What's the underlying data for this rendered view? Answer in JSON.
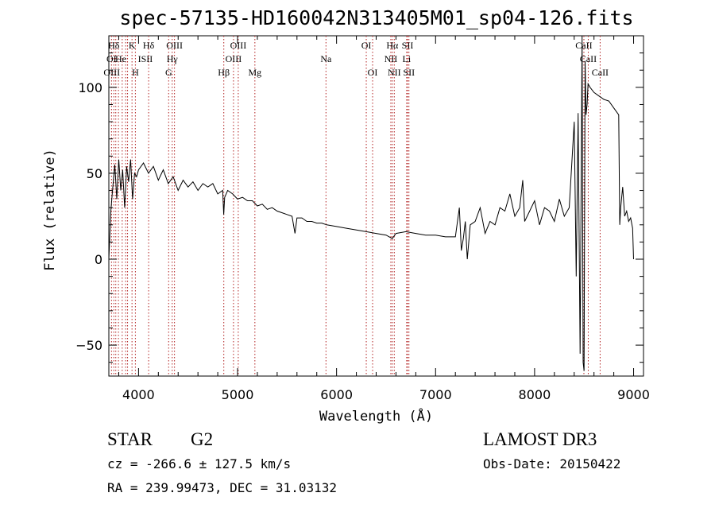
{
  "chart_data": {
    "type": "line",
    "title": "spec-57135-HD160042N313405M01_sp04-126.fits",
    "xlabel": "Wavelength (Å)",
    "ylabel": "Flux (relative)",
    "xlim": [
      3700,
      9100
    ],
    "ylim": [
      -68,
      130
    ],
    "x_ticks": [
      4000,
      5000,
      6000,
      7000,
      8000,
      9000
    ],
    "y_ticks": [
      -50,
      0,
      50,
      100
    ],
    "series": [
      {
        "x": [
          3700,
          3720,
          3740,
          3760,
          3780,
          3800,
          3820,
          3840,
          3860,
          3880,
          3900,
          3920,
          3940,
          3960,
          3980,
          4000,
          4050,
          4100,
          4150,
          4200,
          4250,
          4300,
          4350,
          4400,
          4450,
          4500,
          4550,
          4600,
          4650,
          4700,
          4750,
          4800,
          4850,
          4860,
          4870,
          4900,
          4950,
          5000,
          5050,
          5100,
          5150,
          5200,
          5250,
          5300,
          5350,
          5400,
          5450,
          5500,
          5550,
          5580,
          5600,
          5650,
          5700,
          5750,
          5800,
          5850,
          5900,
          6000,
          6100,
          6200,
          6300,
          6400,
          6500,
          6563,
          6600,
          6700,
          6800,
          6900,
          7000,
          7100,
          7200,
          7240,
          7260,
          7280,
          7300,
          7320,
          7350,
          7400,
          7450,
          7500,
          7550,
          7600,
          7650,
          7700,
          7750,
          7800,
          7850,
          7880,
          7900,
          7950,
          8000,
          8050,
          8100,
          8150,
          8200,
          8250,
          8300,
          8350,
          8400,
          8420,
          8440,
          8460,
          8480,
          8490,
          8500,
          8510,
          8520,
          8530,
          8540,
          8560,
          8600,
          8650,
          8700,
          8750,
          8800,
          8850,
          8860,
          8870,
          8890,
          8910,
          8930,
          8950,
          8970,
          8990,
          9000
        ],
        "y": [
          0,
          28,
          42,
          55,
          35,
          58,
          40,
          52,
          30,
          54,
          45,
          58,
          35,
          50,
          48,
          52,
          56,
          50,
          54,
          46,
          52,
          44,
          48,
          40,
          46,
          42,
          45,
          40,
          44,
          42,
          44,
          38,
          40,
          26,
          36,
          40,
          38,
          35,
          36,
          34,
          34,
          31,
          32,
          29,
          30,
          28,
          27,
          26,
          25,
          15,
          24,
          24,
          22,
          22,
          21,
          21,
          20,
          19,
          18,
          17,
          16,
          15,
          14,
          12,
          15,
          16,
          15,
          14,
          14,
          13,
          13,
          30,
          5,
          12,
          22,
          0,
          20,
          22,
          30,
          15,
          22,
          20,
          30,
          28,
          38,
          25,
          30,
          46,
          22,
          28,
          34,
          20,
          30,
          28,
          22,
          35,
          25,
          30,
          80,
          -10,
          85,
          -55,
          130,
          -60,
          -65,
          115,
          84,
          90,
          102,
          100,
          97,
          95,
          93,
          92,
          88,
          84,
          20,
          30,
          42,
          25,
          28,
          22,
          24,
          18,
          0
        ]
      }
    ],
    "spectral_lines": [
      {
        "label": "Hδ",
        "x": 3750,
        "row": 0
      },
      {
        "label": "K",
        "x": 3934,
        "row": 0
      },
      {
        "label": "Hδ",
        "x": 4102,
        "row": 0
      },
      {
        "label": "OIII",
        "x": 4363,
        "row": 0
      },
      {
        "label": "OIII",
        "x": 5007,
        "row": 0
      },
      {
        "label": "OI",
        "x": 6300,
        "row": 0
      },
      {
        "label": "Hα",
        "x": 6563,
        "row": 0
      },
      {
        "label": "SII",
        "x": 6717,
        "row": 0
      },
      {
        "label": "CaII",
        "x": 8498,
        "row": 0
      },
      {
        "label": "OI",
        "x": 3727,
        "row": 1
      },
      {
        "label": "He",
        "x": 3820,
        "row": 1
      },
      {
        "label": "ISII",
        "x": 4069,
        "row": 1
      },
      {
        "label": "Hγ",
        "x": 4340,
        "row": 1
      },
      {
        "label": "OIII",
        "x": 4959,
        "row": 1
      },
      {
        "label": "Na",
        "x": 5893,
        "row": 1
      },
      {
        "label": "NII",
        "x": 6548,
        "row": 1
      },
      {
        "label": "Li",
        "x": 6708,
        "row": 1
      },
      {
        "label": "CaII",
        "x": 8542,
        "row": 1
      },
      {
        "label": "OIII",
        "x": 3730,
        "row": 2
      },
      {
        "label": "H",
        "x": 3968,
        "row": 2
      },
      {
        "label": "G",
        "x": 4304,
        "row": 2
      },
      {
        "label": "Hβ",
        "x": 4861,
        "row": 2
      },
      {
        "label": "Mg",
        "x": 5175,
        "row": 2
      },
      {
        "label": "OI",
        "x": 6364,
        "row": 2
      },
      {
        "label": "NII",
        "x": 6583,
        "row": 2
      },
      {
        "label": "SII",
        "x": 6731,
        "row": 2
      },
      {
        "label": "CaII",
        "x": 8662,
        "row": 2
      }
    ],
    "line_marker_x": [
      3727,
      3750,
      3770,
      3797,
      3835,
      3870,
      3889,
      3934,
      3968,
      4102,
      4304,
      4340,
      4363,
      4861,
      4959,
      5007,
      5175,
      5893,
      6300,
      6364,
      6548,
      6563,
      6583,
      6708,
      6717,
      6731,
      8498,
      8542,
      8662
    ],
    "line_marker_color": "#b22222",
    "grid": false
  },
  "info": {
    "class": "STAR",
    "subclass": "G2",
    "survey": "LAMOST DR3",
    "cz": "cz = -266.6 ± 127.5 km/s",
    "obs_date": "Obs-Date: 20150422",
    "coords": "RA = 239.99473, DEC =  31.03132"
  }
}
